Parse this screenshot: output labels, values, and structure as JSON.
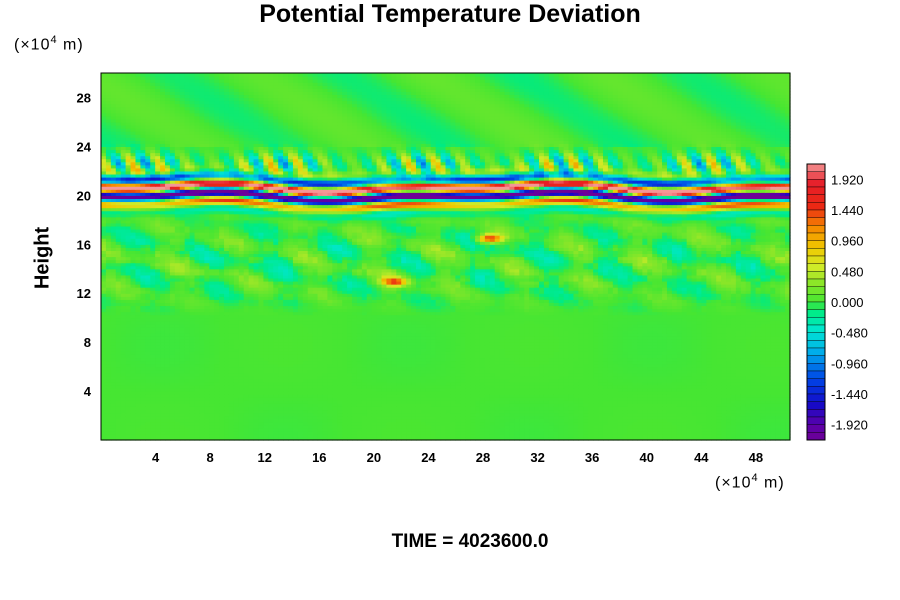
{
  "figure": {
    "title": "Potential Temperature Deviation",
    "y_unit": "(×10",
    "y_unit_exp": "4",
    "y_unit_tail": " m)",
    "x_unit": "(×10",
    "x_unit_exp": "4",
    "x_unit_tail": " m)",
    "ylabel": "Height",
    "time_label": "TIME = 4023600.0"
  },
  "chart_data": {
    "type": "heatmap",
    "title": "Potential Temperature Deviation",
    "xlabel": "",
    "ylabel": "Height",
    "xlim": [
      0,
      50.5
    ],
    "ylim": [
      0,
      30
    ],
    "x_ticks": [
      4,
      8,
      12,
      16,
      20,
      24,
      28,
      32,
      36,
      40,
      44,
      48
    ],
    "y_ticks": [
      4,
      8,
      12,
      16,
      20,
      24,
      28
    ],
    "x_tick_labels": [
      "4",
      "8",
      "12",
      "16",
      "20",
      "24",
      "28",
      "32",
      "36",
      "40",
      "44",
      "48"
    ],
    "y_tick_labels": [
      "4",
      "8",
      "12",
      "16",
      "20",
      "24",
      "28"
    ],
    "colorbar": {
      "min": -2.16,
      "max": 2.16,
      "step": 0.12,
      "labels": [
        "1.920",
        "1.440",
        "0.960",
        "0.480",
        "0.000",
        "-0.480",
        "-0.960",
        "-1.440",
        "-1.920"
      ],
      "label_values": [
        1.92,
        1.44,
        0.96,
        0.48,
        0.0,
        -0.48,
        -0.96,
        -1.44,
        -1.92
      ]
    },
    "features": [
      {
        "name": "strong oscillating band",
        "y_center": 20.3,
        "y_halfwidth": 1.2
      },
      {
        "name": "wave band",
        "y_center": 22.5,
        "y_halfwidth": 1.0
      },
      {
        "name": "turbulent layer",
        "y_min": 10.5,
        "y_max": 19.0
      },
      {
        "name": "warm patch",
        "x": 28.5,
        "y": 16.5,
        "value": 1.5
      },
      {
        "name": "warm patch",
        "x": 21.5,
        "y": 13.0,
        "value": 1.4
      }
    ],
    "time": "TIME = 4023600.0"
  }
}
